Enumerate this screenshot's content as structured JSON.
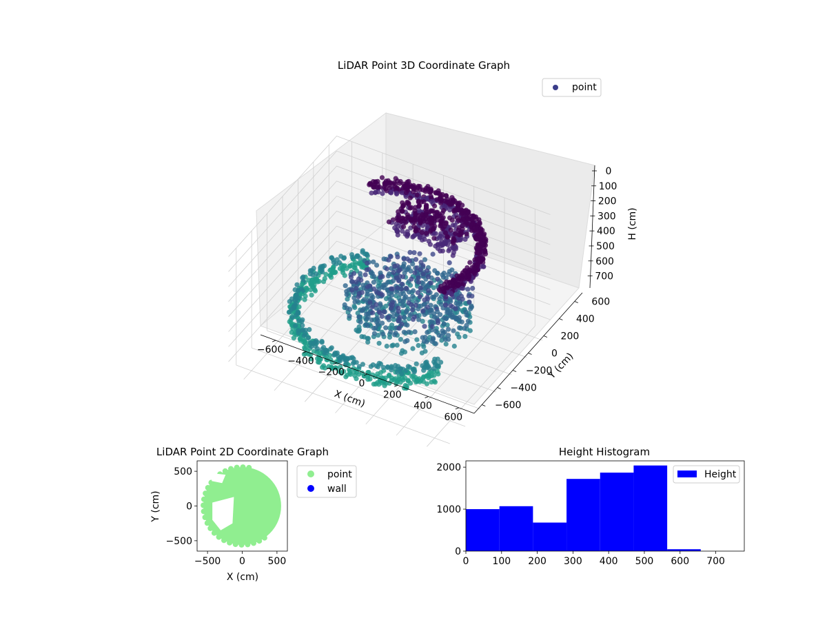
{
  "chart_data": [
    {
      "type": "scatter",
      "projection": "3d",
      "title": "LiDAR Point 3D Coordinate Graph",
      "xlabel": "X (cm)",
      "ylabel": "Y (cm)",
      "zlabel": "H (cm)",
      "xlim": [
        -700,
        700
      ],
      "ylim": [
        -700,
        700
      ],
      "zlim": [
        780,
        0
      ],
      "z_inverted": true,
      "x_ticks": [
        -600,
        -400,
        -200,
        0,
        200,
        400,
        600
      ],
      "y_ticks": [
        -600,
        -400,
        -200,
        0,
        200,
        400,
        600
      ],
      "z_ticks": [
        0,
        100,
        200,
        300,
        400,
        500,
        600,
        700
      ],
      "colormap": "viridis",
      "grid": true,
      "legend_position": "upper-right",
      "series": [
        {
          "name": "point",
          "color": "#3b3d8a"
        }
      ],
      "point_groups": [
        {
          "shape": "arc",
          "center": [
            0,
            0
          ],
          "radius_cm": 560,
          "angle_deg": [
            130,
            330
          ],
          "height_cm": [
            480,
            620
          ]
        },
        {
          "shape": "arc",
          "center": [
            0,
            0
          ],
          "radius_cm": 540,
          "angle_deg": [
            -30,
            130
          ],
          "height_cm": [
            0,
            80
          ]
        },
        {
          "shape": "cluster",
          "center": [
            120,
            300
          ],
          "spread_cm": [
            220,
            120
          ],
          "height_cm": [
            0,
            120
          ]
        },
        {
          "shape": "disc",
          "center": [
            150,
            -50
          ],
          "radius_cm": 380,
          "height_cm": [
            250,
            470
          ]
        }
      ]
    },
    {
      "type": "scatter",
      "title": "LiDAR Point 2D Coordinate Graph",
      "xlabel": "X (cm)",
      "ylabel": "Y (cm)",
      "xlim": [
        -650,
        650
      ],
      "ylim": [
        -650,
        650
      ],
      "x_ticks": [
        -500,
        0,
        500
      ],
      "y_ticks": [
        -500,
        0,
        500
      ],
      "legend_position": "outside-right",
      "series": [
        {
          "name": "point",
          "color": "#90ee90"
        },
        {
          "name": "wall",
          "color": "#0000ff"
        }
      ],
      "region": {
        "center": [
          0,
          0
        ],
        "radius_cm": 560,
        "gap_x_cm": [
          -430,
          -120
        ],
        "gap_y_cm": [
          -350,
          50
        ]
      }
    },
    {
      "type": "bar",
      "subtype": "histogram",
      "title": "Height Histogram",
      "xlim": [
        0,
        780
      ],
      "ylim": [
        0,
        2150
      ],
      "x_ticks": [
        0,
        100,
        200,
        300,
        400,
        500,
        600,
        700
      ],
      "y_ticks": [
        0,
        1000,
        2000
      ],
      "bin_edges": [
        0,
        94,
        188,
        282,
        376,
        470,
        564,
        658
      ],
      "values": [
        1000,
        1070,
        680,
        1720,
        1870,
        2040,
        45
      ],
      "legend_position": "upper-right",
      "series": [
        {
          "name": "Height",
          "color": "#0000ff"
        }
      ]
    }
  ]
}
